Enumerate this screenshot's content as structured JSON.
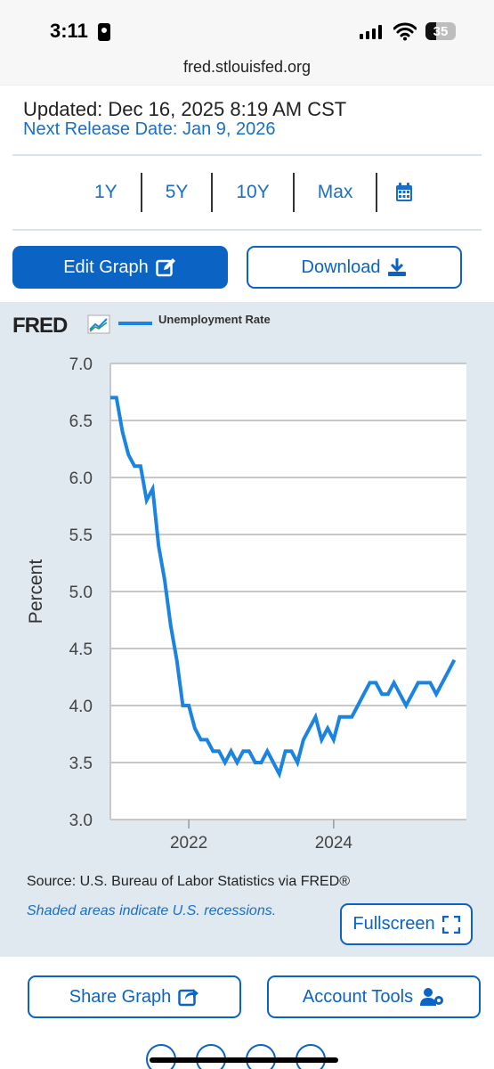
{
  "status_bar": {
    "time": "3:11",
    "battery": "35"
  },
  "browser": {
    "url": "fred.stlouisfed.org"
  },
  "info": {
    "updated": "Updated: Dec 16, 2025 8:19 AM CST",
    "next_release": "Next Release Date: Jan 9, 2026"
  },
  "ranges": [
    "1Y",
    "5Y",
    "10Y",
    "Max"
  ],
  "buttons": {
    "edit": "Edit Graph",
    "download": "Download",
    "fullscreen": "Fullscreen",
    "share": "Share Graph",
    "account": "Account Tools"
  },
  "logo": "FRED",
  "footer": {
    "source": "Source: U.S. Bureau of Labor Statistics via FRED®",
    "shaded": "Shaded areas indicate U.S. recessions."
  },
  "colors": {
    "accent": "#0b63c4",
    "series": "#1a84e0",
    "panel": "#e1e9f0"
  },
  "chart_data": {
    "type": "line",
    "xlabel": "",
    "ylabel": "Percent",
    "ylim": [
      3.0,
      7.0
    ],
    "yticks": [
      "3.0",
      "3.5",
      "4.0",
      "4.5",
      "5.0",
      "5.5",
      "6.0",
      "6.5",
      "7.0"
    ],
    "xticks": [
      "2022",
      "2024"
    ],
    "xlim": [
      "2020-12",
      "2025-11"
    ],
    "grid": "horizontal",
    "legend": "top-left",
    "series": [
      {
        "name": "Unemployment Rate",
        "x": [
          "2020-12",
          "2021-01",
          "2021-02",
          "2021-03",
          "2021-04",
          "2021-05",
          "2021-06",
          "2021-07",
          "2021-08",
          "2021-09",
          "2021-10",
          "2021-11",
          "2021-12",
          "2022-01",
          "2022-02",
          "2022-03",
          "2022-04",
          "2022-05",
          "2022-06",
          "2022-07",
          "2022-08",
          "2022-09",
          "2022-10",
          "2022-11",
          "2022-12",
          "2023-01",
          "2023-02",
          "2023-03",
          "2023-04",
          "2023-05",
          "2023-06",
          "2023-07",
          "2023-08",
          "2023-09",
          "2023-10",
          "2023-11",
          "2023-12",
          "2024-01",
          "2024-02",
          "2024-03",
          "2024-04",
          "2024-05",
          "2024-06",
          "2024-07",
          "2024-08",
          "2024-09",
          "2024-10",
          "2024-11",
          "2024-12",
          "2025-01",
          "2025-02",
          "2025-03",
          "2025-04",
          "2025-05",
          "2025-06",
          "2025-07",
          "2025-08",
          "2025-09"
        ],
        "values": [
          6.7,
          6.7,
          6.4,
          6.2,
          6.1,
          6.1,
          5.8,
          5.9,
          5.4,
          5.1,
          4.7,
          4.4,
          4.0,
          4.0,
          3.8,
          3.7,
          3.7,
          3.6,
          3.6,
          3.5,
          3.6,
          3.5,
          3.6,
          3.6,
          3.5,
          3.5,
          3.6,
          3.5,
          3.4,
          3.6,
          3.6,
          3.5,
          3.7,
          3.8,
          3.9,
          3.7,
          3.8,
          3.7,
          3.9,
          3.9,
          3.9,
          4.0,
          4.1,
          4.2,
          4.2,
          4.1,
          4.1,
          4.2,
          4.1,
          4.0,
          4.1,
          4.2,
          4.2,
          4.2,
          4.1,
          4.2,
          4.3,
          4.4
        ]
      }
    ]
  }
}
